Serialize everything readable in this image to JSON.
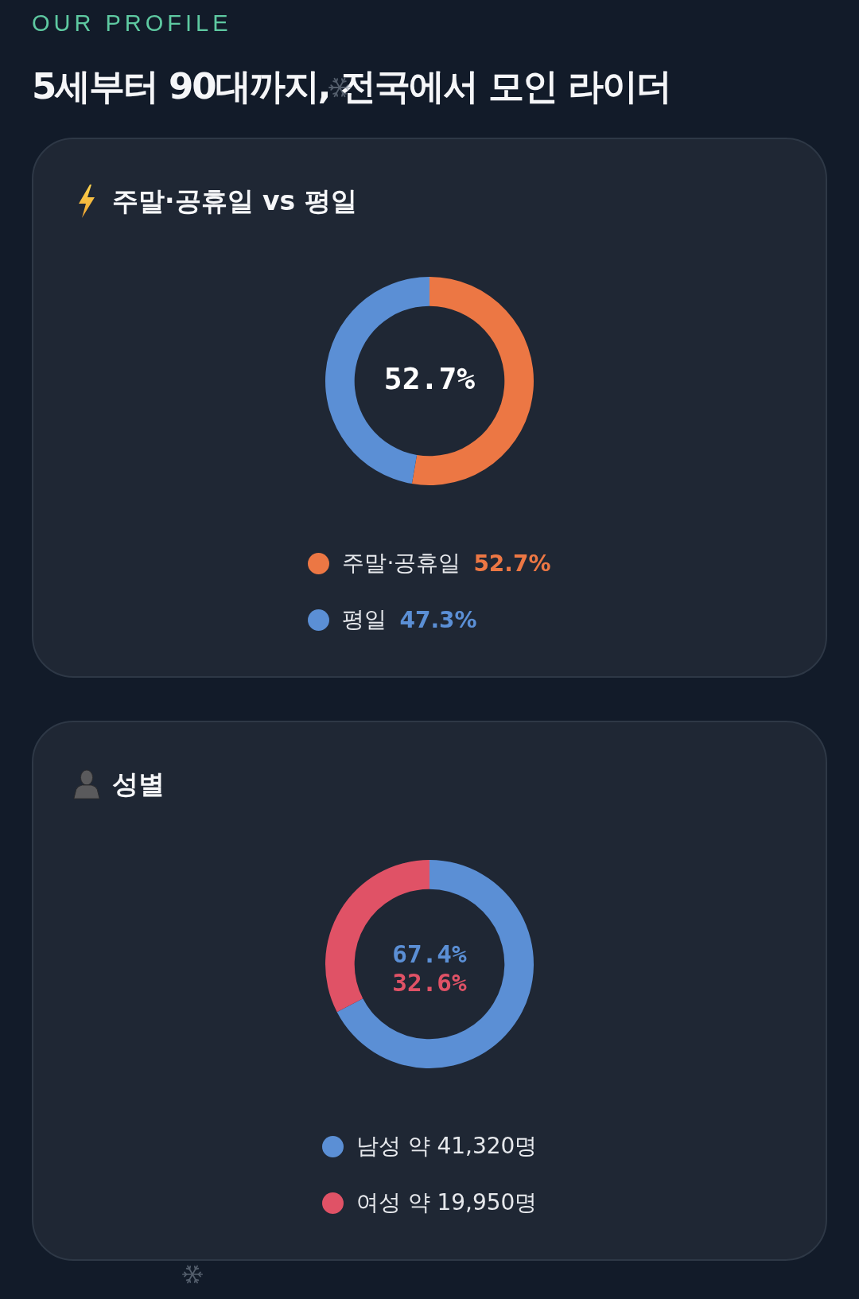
{
  "chart_data": [
    {
      "type": "other",
      "subtitle": "OUR PROFILE",
      "title": "5세부터 90대까지, 전국에서 모인 라이더"
    },
    {
      "type": "donut",
      "title": "주말·공휴일 vs 평일",
      "categories": [
        "주말·공휴일",
        "평일"
      ],
      "values": [
        52.7,
        47.3
      ],
      "colors": [
        "#ec7744",
        "#5b8fd5"
      ],
      "value_labels": [
        "52.7%",
        "47.3%"
      ],
      "annotations": [
        "52.7%"
      ],
      "legend": "bottom"
    },
    {
      "type": "donut",
      "title": "성별",
      "categories": [
        "남성 약 41,320명",
        "여성 약 19,950명"
      ],
      "values": [
        67.4,
        32.6
      ],
      "colors": [
        "#5b8fd5",
        "#e05266"
      ],
      "annotations": [
        "67.4%",
        "32.6%"
      ],
      "legend": "bottom"
    }
  ]
}
